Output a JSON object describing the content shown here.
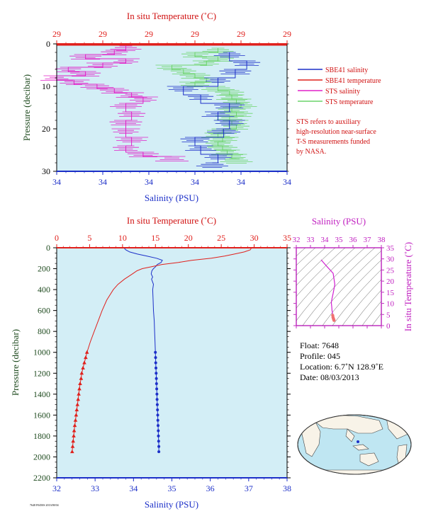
{
  "colors": {
    "plot_bg": "#d3eef6",
    "salinity": "#1c2fc8",
    "temperature": "#e0201c",
    "sts_salinity": "#e020c8",
    "sts_temperature": "#6cd46c",
    "pressure_label": "#1e4a1e",
    "float_info": "#000000",
    "note": "#d01010",
    "inset_border": "#c030c0"
  },
  "top_panel": {
    "top_axis_title": "In situ Temperature (˚C)",
    "bottom_axis_title": "Salinity (PSU)",
    "left_axis_title": "Pressure (decibar)",
    "temp_tick_labels": [
      "29",
      "29",
      "29",
      "29",
      "29",
      "29"
    ],
    "sal_tick_labels": [
      "34",
      "34",
      "34",
      "34",
      "34",
      "34"
    ],
    "pressure_tick_labels": [
      "0",
      "10",
      "20",
      "30"
    ],
    "legend": [
      {
        "label": "SBE41 salinity",
        "color": "#1c2fc8"
      },
      {
        "label": "SBE41 temperature",
        "color": "#e0201c"
      },
      {
        "label": "STS salinity",
        "color": "#e020c8"
      },
      {
        "label": "STS temperature",
        "color": "#6cd46c"
      }
    ],
    "note_lines": [
      "STS refers to auxiliary",
      "high-resolution near-surface",
      "T-S measurements funded",
      "by NASA."
    ]
  },
  "main_panel": {
    "top_axis_title": "In situ Temperature (˚C)",
    "bottom_axis_title": "Salinity (PSU)",
    "left_axis_title": "Pressure (decibar)"
  },
  "ts_inset": {
    "top_axis_title": "Salinity (PSU)",
    "right_axis_title": "In situ Temperature (˚C)"
  },
  "float_info": {
    "float": "Float:  7648",
    "profile": "Profile:  045",
    "location": "Location:  6.7˚N  128.9˚E",
    "date": "Date:  08/03/2013"
  },
  "footer_text": "7648 F0450S 2013/08/04",
  "chart_data": [
    {
      "type": "line",
      "name": "near-surface STS/SBE41 profile",
      "x_top_label": "In situ Temperature (˚C)",
      "x_bottom_label": "Salinity (PSU)",
      "ylabel": "Pressure (decibar)",
      "ylim": [
        0,
        30
      ],
      "y_inverted": true,
      "xlim_salinity": [
        34.0,
        34.4
      ],
      "xlim_temperature": [
        28.9,
        29.9
      ],
      "y_ticks": [
        0,
        10,
        20,
        30
      ],
      "series": [
        {
          "name": "SBE41 salinity",
          "color": "#1c2fc8",
          "pressure": [
            2,
            4,
            6,
            8,
            10,
            12,
            14,
            16,
            18,
            20,
            22,
            24,
            26,
            28
          ],
          "values": [
            34.3,
            34.33,
            34.31,
            34.28,
            34.22,
            34.25,
            34.3,
            34.28,
            34.3,
            34.29,
            34.24,
            34.25,
            34.28,
            34.27
          ]
        },
        {
          "name": "SBE41 temperature",
          "color": "#e0201c",
          "pressure": [
            0,
            1
          ],
          "values": [
            29.9,
            29.9
          ]
        },
        {
          "name": "STS salinity",
          "color": "#e020c8",
          "pressure": [
            0.5,
            1.5,
            2.5,
            3.5,
            4.5,
            5.5,
            6.5,
            7.5,
            8.5,
            9.5,
            10.5,
            11.5,
            12.5,
            14,
            16,
            18,
            20,
            22,
            24,
            25.5,
            26.5
          ],
          "values": [
            34.12,
            34.1,
            34.05,
            34.12,
            34.08,
            34.02,
            34.05,
            34.0,
            34.03,
            34.07,
            34.1,
            34.13,
            34.15,
            34.12,
            34.13,
            34.12,
            34.12,
            34.13,
            34.12,
            34.15,
            34.2
          ]
        },
        {
          "name": "STS temperature",
          "color": "#6cd46c",
          "pressure": [
            1,
            2,
            3,
            4,
            5,
            6,
            7,
            8,
            9,
            10,
            11,
            12,
            13,
            14,
            15,
            16,
            17,
            18,
            19,
            20,
            21,
            22,
            23,
            24,
            25,
            26,
            27
          ],
          "values": [
            29.6,
            29.5,
            29.6,
            29.55,
            29.4,
            29.45,
            29.5,
            29.55,
            29.5,
            29.6,
            29.65,
            29.66,
            29.68,
            29.7,
            29.66,
            29.68,
            29.65,
            29.66,
            29.68,
            29.62,
            29.6,
            29.62,
            29.6,
            29.62,
            29.64,
            29.66,
            29.68
          ]
        }
      ]
    },
    {
      "type": "line",
      "name": "full-depth profile",
      "x_top_label": "In situ Temperature (˚C)",
      "x_bottom_label": "Salinity (PSU)",
      "ylabel": "Pressure (decibar)",
      "ylim": [
        0,
        2200
      ],
      "y_inverted": true,
      "xlim_salinity": [
        32,
        38
      ],
      "xlim_temperature": [
        0,
        35
      ],
      "salinity_ticks": [
        32,
        33,
        34,
        35,
        36,
        37,
        38
      ],
      "temperature_ticks": [
        0,
        5,
        10,
        15,
        20,
        25,
        30,
        35
      ],
      "pressure_ticks": [
        0,
        200,
        400,
        600,
        800,
        1000,
        1200,
        1400,
        1600,
        1800,
        2000,
        2200
      ],
      "series": [
        {
          "name": "Salinity",
          "color": "#1c2fc8",
          "marker": "circle",
          "pressure": [
            0,
            20,
            40,
            60,
            80,
            100,
            120,
            140,
            160,
            180,
            200,
            220,
            250,
            280,
            300,
            350,
            400,
            500,
            600,
            700,
            800,
            900,
            1000,
            1050,
            1100,
            1150,
            1200,
            1250,
            1300,
            1350,
            1400,
            1450,
            1500,
            1550,
            1600,
            1650,
            1700,
            1750,
            1800,
            1850,
            1900,
            1950
          ],
          "values": [
            33.75,
            33.8,
            33.9,
            34.1,
            34.35,
            34.6,
            34.75,
            34.72,
            34.62,
            34.58,
            34.52,
            34.48,
            34.46,
            34.5,
            34.47,
            34.52,
            34.5,
            34.51,
            34.52,
            34.54,
            34.55,
            34.56,
            34.57,
            34.575,
            34.58,
            34.585,
            34.59,
            34.595,
            34.6,
            34.605,
            34.61,
            34.615,
            34.62,
            34.625,
            34.63,
            34.635,
            34.64,
            34.645,
            34.65,
            34.655,
            34.66,
            34.66
          ],
          "marker_from_pressure": 1000
        },
        {
          "name": "Temperature",
          "color": "#e0201c",
          "marker": "triangle",
          "pressure": [
            0,
            20,
            40,
            60,
            80,
            100,
            120,
            140,
            160,
            180,
            200,
            220,
            250,
            300,
            350,
            400,
            500,
            600,
            700,
            800,
            900,
            1000,
            1050,
            1100,
            1150,
            1200,
            1250,
            1300,
            1350,
            1400,
            1450,
            1500,
            1550,
            1600,
            1650,
            1700,
            1750,
            1800,
            1850,
            1900,
            1950
          ],
          "values": [
            29.6,
            29.4,
            28.5,
            27.0,
            25.5,
            23.5,
            20.5,
            18.5,
            16.0,
            14.5,
            13.0,
            12.2,
            11.5,
            10.3,
            9.3,
            8.6,
            7.6,
            6.9,
            6.3,
            5.7,
            5.1,
            4.6,
            4.4,
            4.2,
            4.0,
            3.8,
            3.7,
            3.55,
            3.45,
            3.35,
            3.25,
            3.15,
            3.05,
            2.95,
            2.85,
            2.75,
            2.65,
            2.58,
            2.5,
            2.42,
            2.35
          ],
          "marker_from_pressure": 1000
        }
      ]
    },
    {
      "type": "line",
      "name": "T-S diagram",
      "xlabel": "Salinity (PSU)",
      "ylabel": "In situ Temperature (˚C)",
      "xlim": [
        32,
        38
      ],
      "ylim": [
        0,
        35
      ],
      "x_ticks": [
        32,
        33,
        34,
        35,
        36,
        37,
        38
      ],
      "y_ticks": [
        0,
        5,
        10,
        15,
        20,
        25,
        30,
        35
      ],
      "series": [
        {
          "name": "T-S curve",
          "color": "#d020d0",
          "salinity": [
            33.75,
            34.1,
            34.6,
            34.72,
            34.6,
            34.52,
            34.47,
            34.5,
            34.52,
            34.55,
            34.57
          ],
          "temperature": [
            29.6,
            27.0,
            23.5,
            18.5,
            14.5,
            12.2,
            10.3,
            8.6,
            6.9,
            5.7,
            4.6
          ]
        },
        {
          "name": "deep points",
          "color": "#f07070",
          "salinity": [
            34.57,
            34.59,
            34.61,
            34.63,
            34.65,
            34.66
          ],
          "temperature": [
            4.6,
            3.8,
            3.35,
            2.95,
            2.58,
            2.35
          ]
        }
      ]
    }
  ]
}
